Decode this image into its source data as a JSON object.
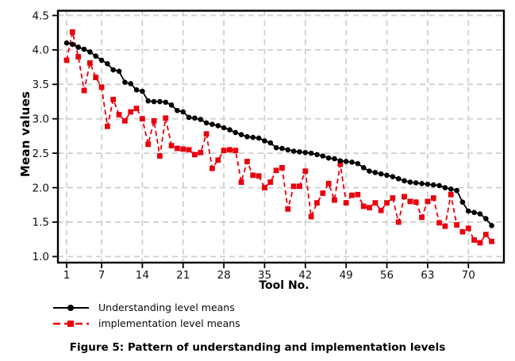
{
  "figure": {
    "caption": "Figure 5: Pattern of understanding and implementation levels"
  },
  "chart_data": {
    "type": "line",
    "title": "",
    "xlabel": "Tool No.",
    "ylabel": "Mean values",
    "x_range": [
      1,
      74
    ],
    "xticks": [
      1,
      7,
      14,
      21,
      28,
      35,
      42,
      49,
      56,
      63,
      70
    ],
    "yticks": [
      1.0,
      1.5,
      2.0,
      2.5,
      3.0,
      3.5,
      4.0,
      4.5
    ],
    "ytick_labels": [
      "1.0",
      "1.5",
      "2.0",
      "2.5",
      "3.0",
      "3.5",
      "4.0",
      "4.5"
    ],
    "ylim": [
      1.0,
      4.5
    ],
    "xlim_draw": [
      -0.5,
      76.1
    ],
    "ylim_draw": [
      0.912,
      4.569
    ],
    "grid": "both-dashed",
    "grid_color": "#cfcfcf",
    "frame_color": "#000000",
    "legend_position": "bottom-left",
    "series": [
      {
        "name": "Understanding level means",
        "color": "#000000",
        "marker": "circle",
        "line": "solid",
        "values": [
          4.1,
          4.08,
          4.04,
          4.01,
          3.97,
          3.91,
          3.85,
          3.8,
          3.71,
          3.69,
          3.53,
          3.51,
          3.42,
          3.4,
          3.26,
          3.25,
          3.25,
          3.24,
          3.2,
          3.12,
          3.1,
          3.02,
          3.01,
          2.99,
          2.94,
          2.92,
          2.9,
          2.87,
          2.84,
          2.8,
          2.77,
          2.74,
          2.73,
          2.72,
          2.68,
          2.65,
          2.58,
          2.57,
          2.55,
          2.53,
          2.52,
          2.51,
          2.5,
          2.48,
          2.46,
          2.43,
          2.42,
          2.39,
          2.38,
          2.37,
          2.35,
          2.29,
          2.24,
          2.22,
          2.2,
          2.18,
          2.16,
          2.13,
          2.1,
          2.08,
          2.07,
          2.06,
          2.05,
          2.04,
          2.03,
          2.0,
          1.98,
          1.96,
          1.79,
          1.66,
          1.64,
          1.62,
          1.55,
          1.45
        ]
      },
      {
        "name": "implementation level means",
        "color": "#e8000d",
        "marker": "square",
        "line": "dashed",
        "values": [
          3.85,
          4.26,
          3.9,
          3.41,
          3.81,
          3.6,
          3.46,
          2.89,
          3.28,
          3.06,
          2.97,
          3.1,
          3.15,
          3.0,
          2.63,
          2.97,
          2.46,
          3.01,
          2.61,
          2.57,
          2.56,
          2.55,
          2.48,
          2.51,
          2.78,
          2.28,
          2.4,
          2.54,
          2.55,
          2.54,
          2.08,
          2.38,
          2.18,
          2.17,
          2.0,
          2.08,
          2.25,
          2.29,
          1.69,
          2.02,
          2.02,
          2.24,
          1.58,
          1.78,
          1.92,
          2.06,
          1.82,
          2.34,
          1.78,
          1.89,
          1.9,
          1.73,
          1.71,
          1.78,
          1.67,
          1.78,
          1.85,
          1.5,
          1.87,
          1.8,
          1.79,
          1.57,
          1.8,
          1.85,
          1.49,
          1.44,
          1.9,
          1.46,
          1.36,
          1.41,
          1.24,
          1.2,
          1.32,
          1.22
        ]
      }
    ]
  }
}
